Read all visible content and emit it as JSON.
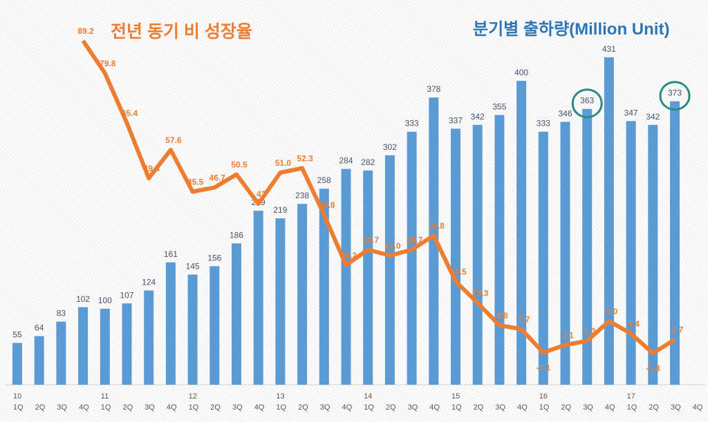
{
  "chart_data": {
    "type": "bar+line",
    "title_line": "전년 동기 비 성장율",
    "title_bar": "분기별 출하량(Million Unit)",
    "years": [
      "10",
      "11",
      "12",
      "13",
      "14",
      "15",
      "16",
      "17"
    ],
    "quarters": [
      "1Q",
      "2Q",
      "3Q",
      "4Q"
    ],
    "categories": [
      "10 1Q",
      "10 2Q",
      "10 3Q",
      "10 4Q",
      "11 1Q",
      "11 2Q",
      "11 3Q",
      "11 4Q",
      "12 1Q",
      "12 2Q",
      "12 3Q",
      "12 4Q",
      "13 1Q",
      "13 2Q",
      "13 3Q",
      "13 4Q",
      "14 1Q",
      "14 2Q",
      "14 3Q",
      "14 4Q",
      "15 1Q",
      "15 2Q",
      "15 3Q",
      "15 4Q",
      "16 1Q",
      "16 2Q",
      "16 3Q",
      "16 4Q",
      "17 1Q",
      "17 2Q",
      "17 3Q",
      "17 4Q"
    ],
    "series": [
      {
        "name": "분기별 출하량(Million Unit)",
        "type": "bar",
        "color": "#5B9BD5",
        "values": [
          55,
          64,
          83,
          102,
          100,
          107,
          124,
          161,
          145,
          156,
          186,
          229,
          219,
          238,
          258,
          284,
          282,
          302,
          333,
          378,
          337,
          342,
          355,
          400,
          333,
          346,
          363,
          431,
          347,
          342,
          373,
          null
        ]
      },
      {
        "name": "전년 동기 비 성장율",
        "type": "line",
        "color": "#ED7D31",
        "values": [
          null,
          null,
          null,
          89.2,
          79.8,
          65.4,
          49.4,
          57.6,
          45.5,
          46.7,
          50.5,
          42,
          51.0,
          52.3,
          38.8,
          24.2,
          28.7,
          27.0,
          28.7,
          32.8,
          19.5,
          13.3,
          6.8,
          5.7,
          -1.1,
          1.1,
          2.3,
          8.0,
          4.4,
          -1.3,
          2.7,
          null
        ]
      }
    ],
    "highlighted": [
      "16 3Q",
      "17 3Q"
    ],
    "highlight_color": "#2A8C82",
    "grid": false,
    "legend": "none"
  }
}
